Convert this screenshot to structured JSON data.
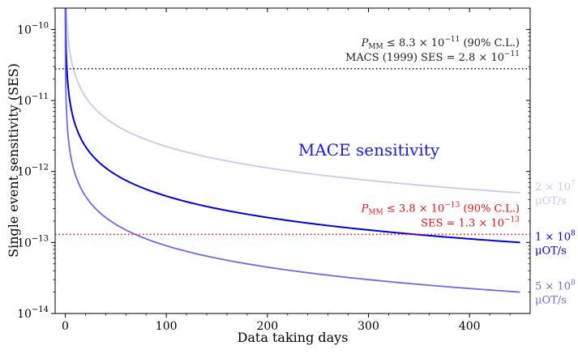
{
  "chart_data": {
    "type": "line",
    "xlabel": "Data taking days",
    "ylabel": "Single event sensitivity (SES)",
    "xlim": [
      -10,
      460
    ],
    "ylim": [
      1e-14,
      2e-10
    ],
    "yscale": "log",
    "xticks": [
      0,
      100,
      200,
      300,
      400
    ],
    "yticks": [
      {
        "value": 1e-14,
        "exp": "−14"
      },
      {
        "value": 1e-13,
        "exp": "−13"
      },
      {
        "value": 1e-12,
        "exp": "−12"
      },
      {
        "value": 1e-11,
        "exp": "−11"
      },
      {
        "value": 1e-10,
        "exp": "−10"
      }
    ],
    "tick_base": "10",
    "x_range_days": [
      0.5,
      450
    ],
    "series": [
      {
        "name": "2×10^7 μOT/s",
        "ses_at_450_days": 5e-13,
        "color": "#c8c8f2",
        "label_line1": "2 × 10",
        "label_exp": "7",
        "label_line2": "μOT/s"
      },
      {
        "name": "1×10^8 μOT/s",
        "ses_at_450_days": 1e-13,
        "color": "#0000dd",
        "label_line1": "1 × 10",
        "label_exp": "8",
        "label_line2": "μOT/s"
      },
      {
        "name": "5×10^8 μOT/s",
        "ses_at_450_days": 2e-14,
        "color": "#6b6be6",
        "label_line1": "5 × 10",
        "label_exp": "8",
        "label_line2": "μOT/s"
      }
    ],
    "reference_lines": [
      {
        "name": "MACS (1999)",
        "value": 2.8e-11,
        "color": "#222222",
        "style": "dotted",
        "line1": {
          "p": "P",
          "sub": "MM",
          "rest": " ≤ 8.3 × 10",
          "exp": "−11",
          "tail": " (90% C.L.)"
        },
        "line2": {
          "prefix": "MACS (1999)    SES = 2.8 × 10",
          "exp": "−11"
        }
      },
      {
        "name": "MACE",
        "value": 1.3e-13,
        "color": "#ee1111",
        "style": "dotted",
        "line1": {
          "p": "P",
          "sub": "MM",
          "rest": " ≤ 3.8 × 10",
          "exp": "−13",
          "tail": " (90% C.L.)"
        },
        "line2": {
          "prefix": "SES = 1.3 × 10",
          "exp": "−13"
        }
      }
    ],
    "annotation": {
      "text": "MACE sensitivity",
      "color": "#1a1ae6"
    }
  }
}
